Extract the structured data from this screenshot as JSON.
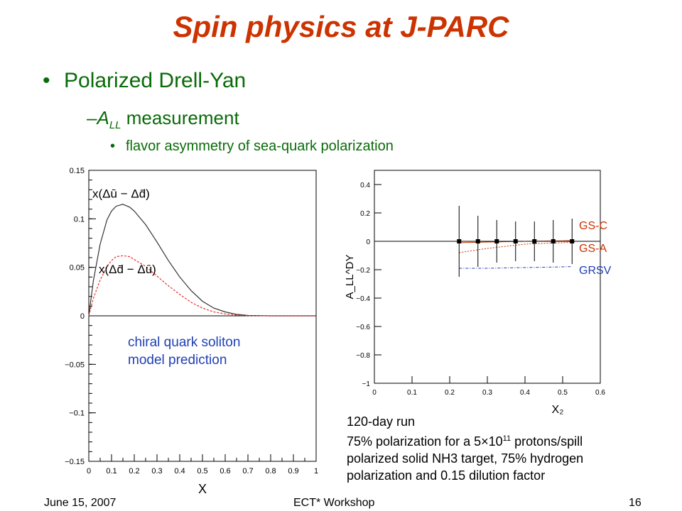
{
  "slide": {
    "title": "Spin physics at J-PARC",
    "bullet1": "Polarized Drell-Yan",
    "bullet2_sym": "A",
    "bullet2_sub": "LL",
    "bullet2_rest": " measurement",
    "bullet3": "flavor asymmetry of sea-quark polarization",
    "note_left": [
      "chiral quark soliton",
      "model prediction"
    ],
    "note_right": [
      "120-day run",
      "polarized solid NH3 target, 75% hydrogen",
      "polarization and 0.15 dilution factor"
    ],
    "note_right_pol": {
      "pre": "75% polarization for a 5",
      "times": "×",
      "base": "10",
      "exp": "11",
      "post": " protons/spill"
    },
    "footer": {
      "date": "June 15, 2007",
      "event": "ECT* Workshop",
      "page": "16"
    },
    "colors": {
      "title": "#cc3300",
      "bullets": "#0a6b0a",
      "note": "#1f3fb5"
    }
  },
  "chart_data": [
    {
      "type": "line",
      "xlabel": "X",
      "ylabel": "",
      "xlim": [
        0,
        1
      ],
      "ylim": [
        -0.15,
        0.15
      ],
      "xticks": [
        "0",
        "0.1",
        "0.2",
        "0.3",
        "0.4",
        "0.5",
        "0.6",
        "0.7",
        "0.8",
        "0.9",
        "1"
      ],
      "yticks": [
        "0.15",
        "0.1",
        "0.05",
        "0",
        "-0.05",
        "-0.1",
        "-0.15"
      ],
      "annotations": [
        "x(Δū − Δd̄)",
        "x(Δd̄ − Δū)"
      ],
      "series": [
        {
          "x": [
            0,
            0.02,
            0.05,
            0.08,
            0.1,
            0.12,
            0.15,
            0.18,
            0.2,
            0.25,
            0.3,
            0.35,
            0.4,
            0.45,
            0.5,
            0.55,
            0.6,
            0.65,
            0.7,
            0.8,
            0.9,
            1.0
          ],
          "y": [
            0,
            0.036,
            0.074,
            0.099,
            0.108,
            0.113,
            0.115,
            0.112,
            0.108,
            0.094,
            0.076,
            0.057,
            0.04,
            0.026,
            0.015,
            0.008,
            0.004,
            0.0015,
            0.0004,
            0,
            0,
            0
          ]
        },
        {
          "x": [
            0,
            0.02,
            0.05,
            0.08,
            0.1,
            0.12,
            0.15,
            0.18,
            0.2,
            0.25,
            0.3,
            0.35,
            0.4,
            0.45,
            0.5,
            0.55,
            0.6,
            0.65,
            0.7,
            0.8,
            0.9,
            1.0
          ],
          "y": [
            0,
            0.018,
            0.037,
            0.051,
            0.057,
            0.061,
            0.062,
            0.061,
            0.058,
            0.051,
            0.041,
            0.031,
            0.022,
            0.014,
            0.008,
            0.004,
            0.002,
            0.0008,
            0.0002,
            0,
            0,
            0
          ]
        }
      ]
    },
    {
      "type": "scatter",
      "xlabel": "X₂",
      "ylabel": "A_LL^DY",
      "xlim": [
        0,
        0.6
      ],
      "ylim": [
        -1,
        0.5
      ],
      "xticks": [
        "0",
        "0.1",
        "0.2",
        "0.3",
        "0.4",
        "0.5",
        "0.6"
      ],
      "yticks": [
        "0.4",
        "0.2",
        "0",
        "-0.2",
        "-0.4",
        "-0.6",
        "-0.8",
        "-1"
      ],
      "points": {
        "x": [
          0.225,
          0.275,
          0.325,
          0.375,
          0.425,
          0.475,
          0.525
        ],
        "y": [
          0,
          0,
          0,
          0,
          0,
          0,
          0
        ],
        "err": [
          0.25,
          0.18,
          0.15,
          0.14,
          0.14,
          0.15,
          0.16
        ]
      },
      "series": [
        {
          "name": "GS-C",
          "color": "#cc3300",
          "x": [
            0.225,
            0.3,
            0.4,
            0.5,
            0.525
          ],
          "y": [
            -0.01,
            -0.005,
            0,
            0.003,
            0.005
          ]
        },
        {
          "name": "GS-A",
          "color": "#cc3300",
          "x": [
            0.225,
            0.3,
            0.4,
            0.5,
            0.525
          ],
          "y": [
            -0.08,
            -0.05,
            -0.02,
            -0.01,
            -0.005
          ]
        },
        {
          "name": "GRSV",
          "color": "#1f3fb5",
          "x": [
            0.225,
            0.3,
            0.4,
            0.5,
            0.525
          ],
          "y": [
            -0.19,
            -0.19,
            -0.185,
            -0.18,
            -0.178
          ]
        }
      ]
    }
  ]
}
